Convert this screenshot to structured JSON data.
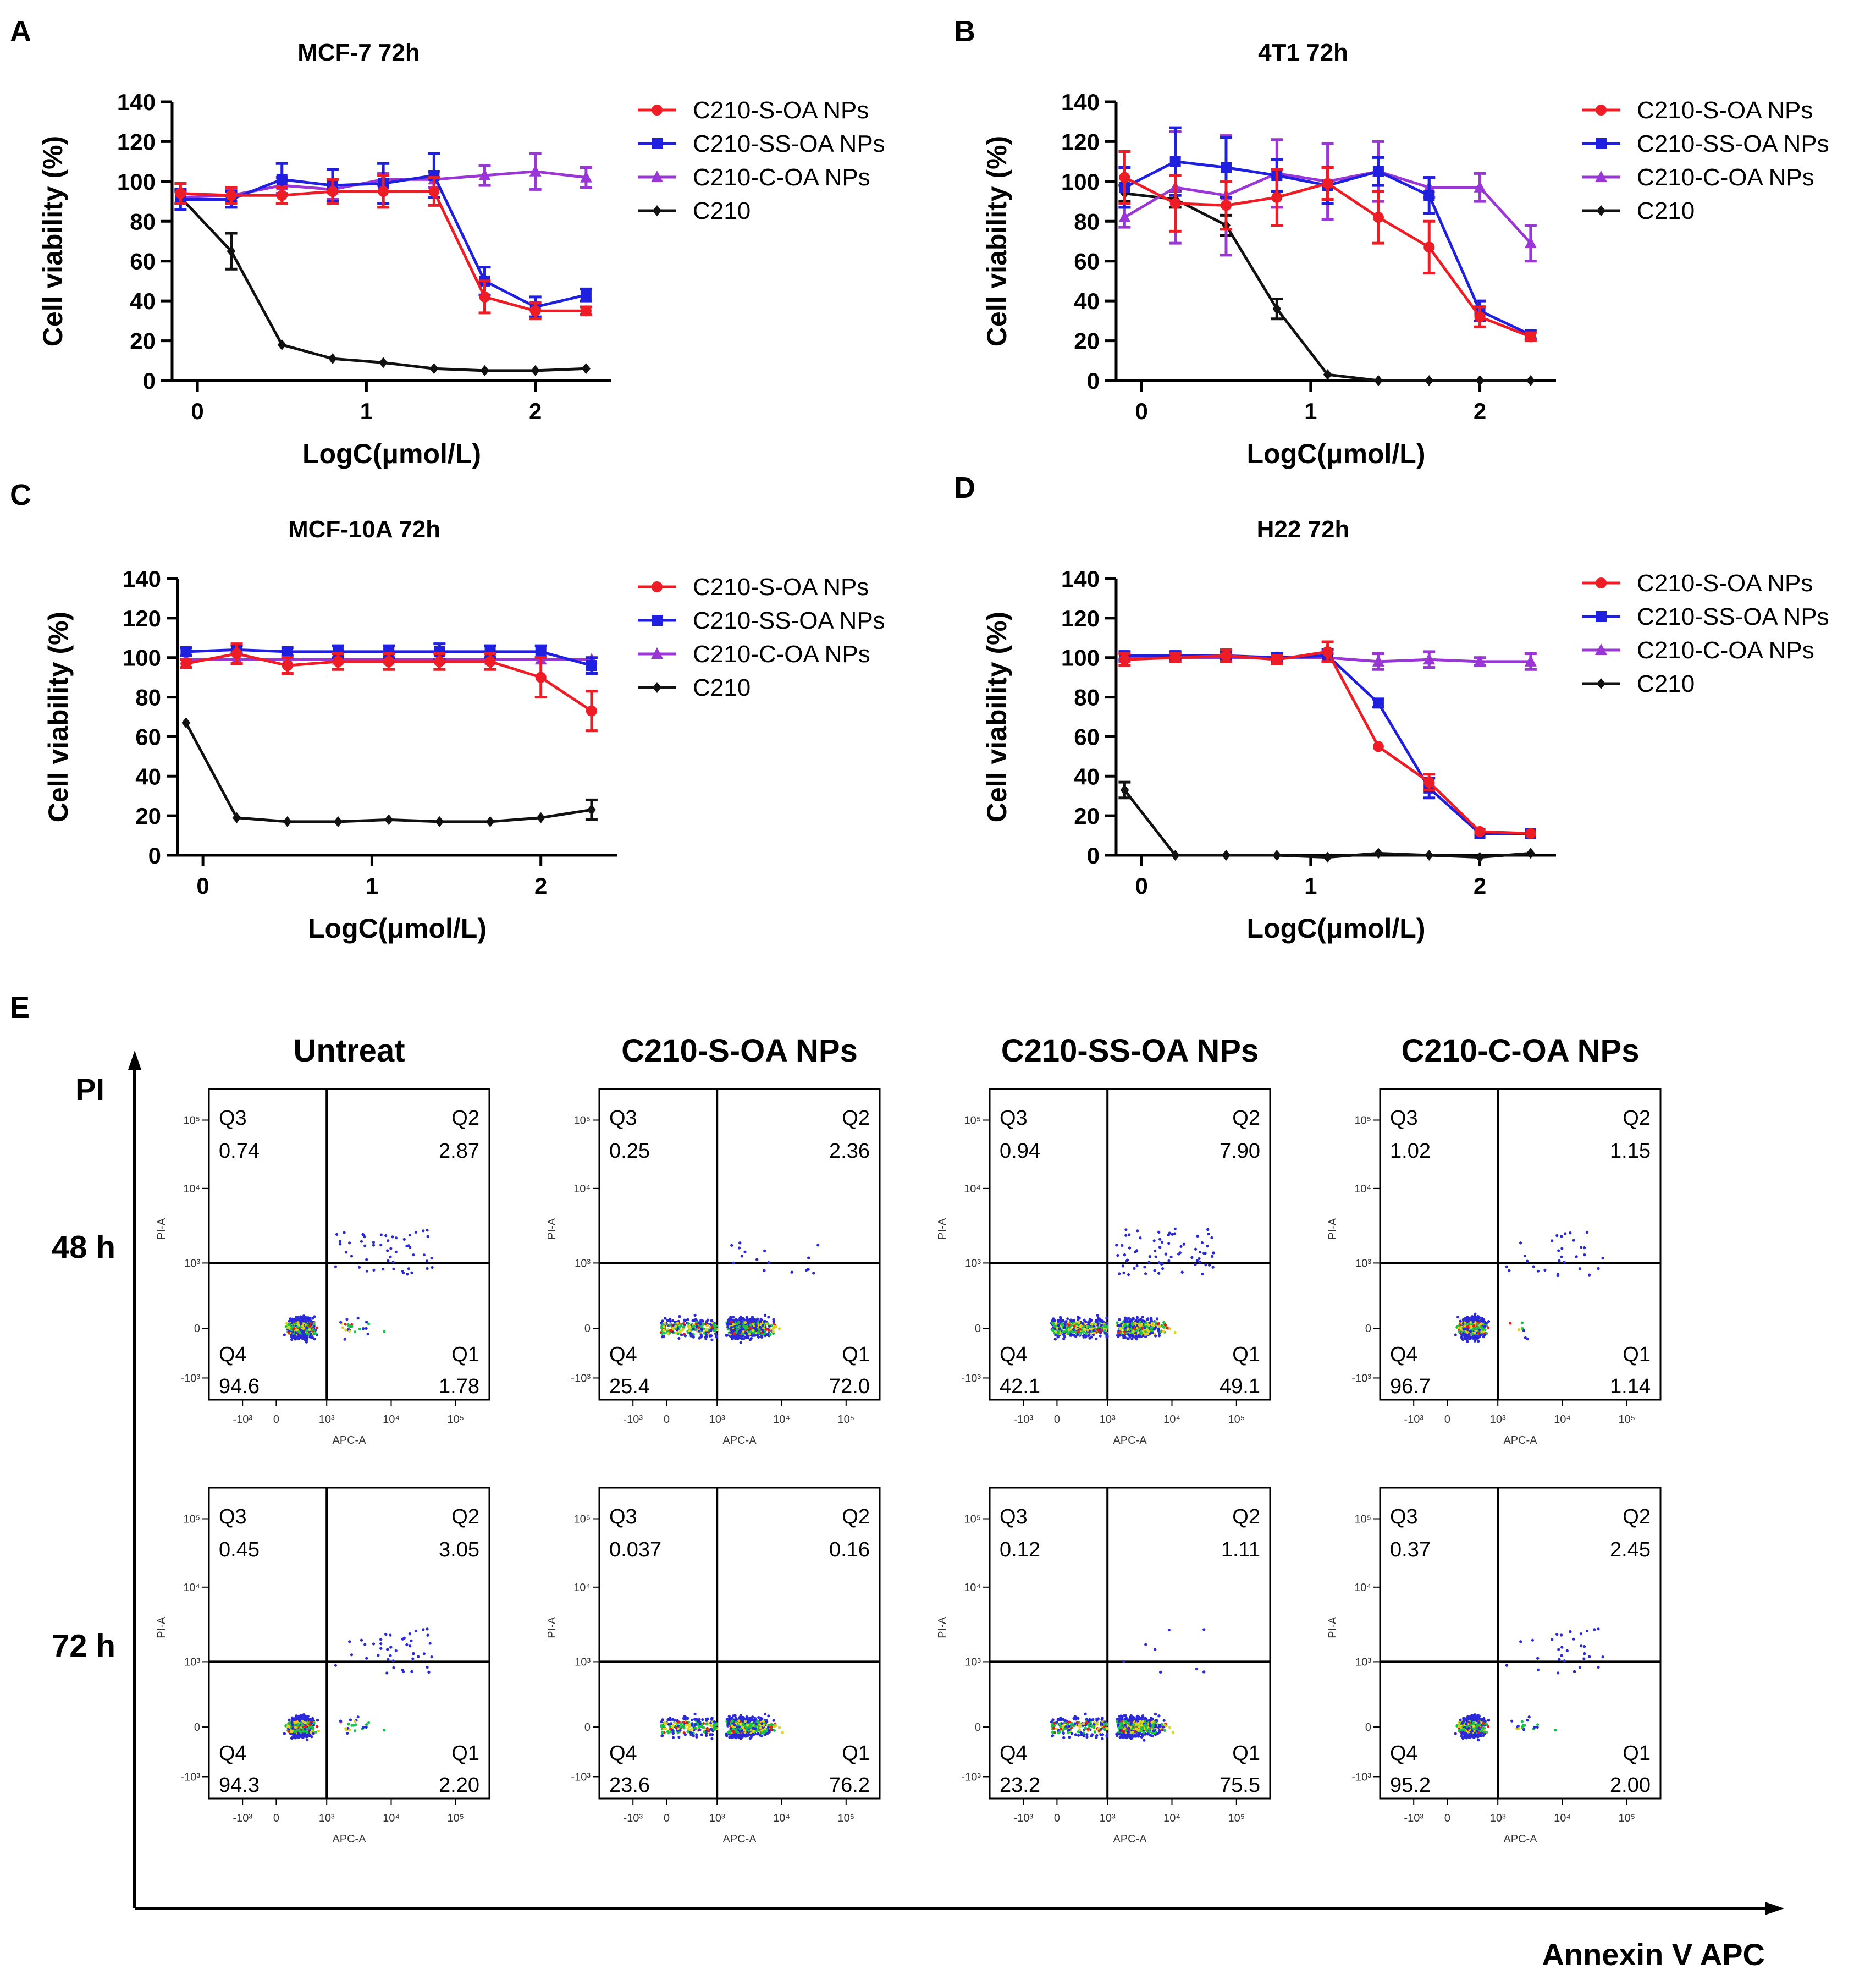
{
  "figure_panel_letters": [
    "A",
    "B",
    "C",
    "D",
    "E"
  ],
  "series_colors": {
    "C210-S-OA NPs": "#ee1c24",
    "C210-SS-OA NPs": "#1f1fe0",
    "C210-C-OA NPs": "#9a35d6",
    "C210": "#111111"
  },
  "chart_data": [
    {
      "panel": "A",
      "type": "line",
      "title": "MCF-7 72h",
      "xlabel": "LogC(μmol/L)",
      "ylabel": "Cell viability (%)",
      "xlim": [
        -0.15,
        2.45
      ],
      "ylim": [
        0,
        140
      ],
      "xticks": [
        "0",
        "1",
        "2"
      ],
      "yticks": [
        "0",
        "20",
        "40",
        "60",
        "80",
        "100",
        "120",
        "140"
      ],
      "x": [
        -0.1,
        0.2,
        0.5,
        0.8,
        1.1,
        1.4,
        1.7,
        2.0,
        2.3
      ],
      "series": [
        {
          "name": "C210-S-OA NPs",
          "marker": "circle",
          "values": [
            94,
            93,
            93,
            95,
            95,
            95,
            42,
            35,
            35
          ],
          "errors": [
            5,
            4,
            4,
            6,
            8,
            7,
            8,
            4,
            2
          ]
        },
        {
          "name": "C210-SS-OA NPs",
          "marker": "square",
          "values": [
            91,
            91,
            101,
            98,
            99,
            103,
            50,
            37,
            43
          ],
          "errors": [
            5,
            4,
            8,
            8,
            10,
            11,
            7,
            5,
            3
          ]
        },
        {
          "name": "C210-C-OA NPs",
          "marker": "triangle",
          "values": [
            92,
            93,
            98,
            96,
            101,
            101,
            103,
            105,
            102
          ],
          "errors": [
            3,
            3,
            4,
            5,
            3,
            4,
            5,
            9,
            5
          ]
        },
        {
          "name": "C210",
          "marker": "diamond",
          "values": [
            92,
            65,
            18,
            11,
            9,
            6,
            5,
            5,
            6
          ],
          "errors": [
            3,
            9,
            1,
            1,
            1,
            1,
            1,
            1,
            1
          ]
        }
      ]
    },
    {
      "panel": "B",
      "type": "line",
      "title": "4T1 72h",
      "xlabel": "LogC(μmol/L)",
      "ylabel": "Cell viability (%)",
      "xlim": [
        -0.15,
        2.45
      ],
      "ylim": [
        0,
        140
      ],
      "xticks": [
        "0",
        "1",
        "2"
      ],
      "yticks": [
        "0",
        "20",
        "40",
        "60",
        "80",
        "100",
        "120",
        "140"
      ],
      "x": [
        -0.1,
        0.2,
        0.5,
        0.8,
        1.1,
        1.4,
        1.7,
        2.0,
        2.3
      ],
      "series": [
        {
          "name": "C210-S-OA NPs",
          "marker": "circle",
          "values": [
            102,
            89,
            88,
            92,
            99,
            82,
            67,
            32,
            22
          ],
          "errors": [
            13,
            14,
            12,
            14,
            8,
            13,
            13,
            5,
            2
          ]
        },
        {
          "name": "C210-SS-OA NPs",
          "marker": "square",
          "values": [
            97,
            110,
            107,
            103,
            98,
            105,
            93,
            35,
            23
          ],
          "errors": [
            10,
            17,
            15,
            8,
            9,
            7,
            9,
            5,
            2
          ]
        },
        {
          "name": "C210-C-OA NPs",
          "marker": "triangle",
          "values": [
            82,
            97,
            93,
            104,
            100,
            105,
            97,
            97,
            69
          ],
          "errors": [
            5,
            28,
            30,
            17,
            19,
            15,
            5,
            7,
            9
          ]
        },
        {
          "name": "C210",
          "marker": "diamond",
          "values": [
            94,
            91,
            78,
            36,
            3,
            0,
            0,
            0,
            0
          ],
          "errors": [
            4,
            4,
            5,
            5,
            1,
            1,
            1,
            1,
            1
          ]
        }
      ]
    },
    {
      "panel": "C",
      "type": "line",
      "title": "MCF-10A 72h",
      "xlabel": "LogC(μmol/L)",
      "ylabel": "Cell viability (%)",
      "xlim": [
        -0.15,
        2.45
      ],
      "ylim": [
        0,
        140
      ],
      "xticks": [
        "0",
        "1",
        "2"
      ],
      "yticks": [
        "0",
        "20",
        "40",
        "60",
        "80",
        "100",
        "120",
        "140"
      ],
      "x": [
        -0.1,
        0.2,
        0.5,
        0.8,
        1.1,
        1.4,
        1.7,
        2.0,
        2.3
      ],
      "series": [
        {
          "name": "C210-S-OA NPs",
          "marker": "circle",
          "values": [
            97,
            102,
            96,
            98,
            98,
            98,
            98,
            90,
            73
          ],
          "errors": [
            2,
            5,
            4,
            4,
            4,
            4,
            4,
            10,
            10
          ]
        },
        {
          "name": "C210-SS-OA NPs",
          "marker": "square",
          "values": [
            103,
            104,
            103,
            103,
            103,
            103,
            103,
            103,
            96
          ],
          "errors": [
            2,
            2,
            2,
            3,
            3,
            4,
            3,
            3,
            4
          ]
        },
        {
          "name": "C210-C-OA NPs",
          "marker": "triangle",
          "values": [
            99,
            99,
            99,
            99,
            99,
            99,
            99,
            99,
            99
          ],
          "errors": [
            1,
            1,
            1,
            1,
            1,
            1,
            1,
            1,
            1
          ]
        },
        {
          "name": "C210",
          "marker": "diamond",
          "values": [
            67,
            19,
            17,
            17,
            18,
            17,
            17,
            19,
            23
          ],
          "errors": [
            1,
            1,
            1,
            1,
            1,
            1,
            1,
            1,
            5
          ]
        }
      ]
    },
    {
      "panel": "D",
      "type": "line",
      "title": "H22 72h",
      "xlabel": "LogC(μmol/L)",
      "ylabel": "Cell viability (%)",
      "xlim": [
        -0.15,
        2.45
      ],
      "ylim": [
        0,
        140
      ],
      "xticks": [
        "0",
        "1",
        "2"
      ],
      "yticks": [
        "0",
        "20",
        "40",
        "60",
        "80",
        "100",
        "120",
        "140"
      ],
      "x": [
        -0.1,
        0.2,
        0.5,
        0.8,
        1.1,
        1.4,
        1.7,
        2.0,
        2.3
      ],
      "series": [
        {
          "name": "C210-S-OA NPs",
          "marker": "circle",
          "values": [
            99,
            100,
            101,
            99,
            103,
            55,
            37,
            12,
            11
          ],
          "errors": [
            3,
            2,
            3,
            2,
            5,
            1,
            4,
            1,
            1
          ]
        },
        {
          "name": "C210-SS-OA NPs",
          "marker": "square",
          "values": [
            101,
            101,
            101,
            100,
            101,
            77,
            34,
            11,
            11
          ],
          "errors": [
            2,
            2,
            2,
            2,
            3,
            2,
            5,
            1,
            1
          ]
        },
        {
          "name": "C210-C-OA NPs",
          "marker": "triangle",
          "values": [
            100,
            100,
            100,
            100,
            100,
            98,
            99,
            98,
            98
          ],
          "errors": [
            2,
            2,
            2,
            2,
            2,
            4,
            4,
            2,
            4
          ]
        },
        {
          "name": "C210",
          "marker": "diamond",
          "values": [
            33,
            0,
            0,
            0,
            -1,
            1,
            0,
            -1,
            1
          ],
          "errors": [
            4,
            1,
            1,
            1,
            1,
            1,
            1,
            1,
            1
          ]
        }
      ]
    },
    {
      "panel": "E",
      "type": "scatter",
      "subtype": "flow-cytometry-grid",
      "x_axis_title": "Annexin V APC",
      "y_axis_title": "PI",
      "plot_xlabel": "APC-A",
      "plot_ylabel": "PI-A",
      "columns": [
        "Untreat",
        "C210-S-OA NPs",
        "C210-SS-OA NPs",
        "C210-C-OA NPs"
      ],
      "rows": [
        "48 h",
        "72 h"
      ],
      "x_tick_labels": [
        "-10³",
        "0",
        "10³",
        "10⁴",
        "10⁵"
      ],
      "y_tick_labels": [
        "10⁵",
        "10⁴",
        "10³",
        "0",
        "-10³"
      ],
      "quadrant_labels": [
        "Q3",
        "Q2",
        "Q4",
        "Q1"
      ],
      "quadrants": [
        [
          {
            "Q3": "0.74",
            "Q2": "2.87",
            "Q4": "94.6",
            "Q1": "1.78"
          },
          {
            "Q3": "0.25",
            "Q2": "2.36",
            "Q4": "25.4",
            "Q1": "72.0"
          },
          {
            "Q3": "0.94",
            "Q2": "7.90",
            "Q4": "42.1",
            "Q1": "49.1"
          },
          {
            "Q3": "1.02",
            "Q2": "1.15",
            "Q4": "96.7",
            "Q1": "1.14"
          }
        ],
        [
          {
            "Q3": "0.45",
            "Q2": "3.05",
            "Q4": "94.3",
            "Q1": "2.20"
          },
          {
            "Q3": "0.037",
            "Q2": "0.16",
            "Q4": "23.6",
            "Q1": "76.2"
          },
          {
            "Q3": "0.12",
            "Q2": "1.11",
            "Q4": "23.2",
            "Q1": "75.5"
          },
          {
            "Q3": "0.37",
            "Q2": "2.45",
            "Q4": "95.2",
            "Q1": "2.00"
          }
        ]
      ]
    }
  ]
}
